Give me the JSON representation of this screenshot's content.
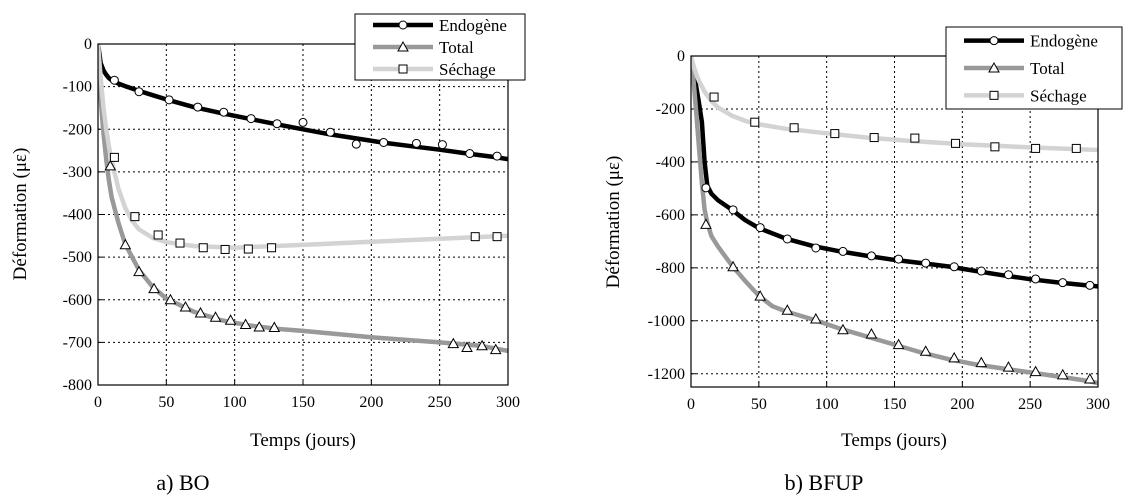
{
  "chart_data": [
    {
      "type": "line",
      "caption": "a) BO",
      "xlabel": "Temps (jours)",
      "ylabel": "Déformation (με)",
      "xlim": [
        0,
        300
      ],
      "ylim": [
        -800,
        0
      ],
      "xticks": [
        0,
        50,
        100,
        150,
        200,
        250,
        300
      ],
      "yticks": [
        0,
        -100,
        -200,
        -300,
        -400,
        -500,
        -600,
        -700,
        -800
      ],
      "grid": true,
      "legend_position": "top-right",
      "series": [
        {
          "name": "Endogène",
          "color": "#000000",
          "marker": "circle",
          "curve_x": [
            0,
            2,
            4,
            6,
            8,
            10,
            15,
            20,
            30,
            40,
            50,
            70,
            90,
            110,
            130,
            150,
            170,
            190,
            210,
            230,
            250,
            270,
            290,
            300
          ],
          "curve_y": [
            0,
            -45,
            -62,
            -72,
            -80,
            -85,
            -93,
            -99,
            -110,
            -120,
            -130,
            -148,
            -162,
            -175,
            -188,
            -200,
            -212,
            -222,
            -232,
            -240,
            -248,
            -257,
            -265,
            -270
          ],
          "marker_x": [
            12,
            30,
            52,
            73,
            92,
            112,
            131,
            150,
            170,
            189,
            209,
            233,
            252,
            272,
            292
          ],
          "marker_y": [
            -85,
            -112,
            -131,
            -148,
            -160,
            -175,
            -187,
            -184,
            -207,
            -235,
            -231,
            -233,
            -236,
            -257,
            -263
          ]
        },
        {
          "name": "Total",
          "color": "#999999",
          "marker": "triangle",
          "curve_x": [
            0,
            2,
            4,
            6,
            8,
            10,
            15,
            20,
            30,
            40,
            50,
            70,
            90,
            110,
            130,
            150,
            200,
            250,
            280,
            300
          ],
          "curve_y": [
            0,
            -130,
            -210,
            -270,
            -320,
            -360,
            -420,
            -470,
            -530,
            -570,
            -597,
            -628,
            -648,
            -660,
            -668,
            -673,
            -688,
            -700,
            -708,
            -720
          ],
          "marker_x": [
            9,
            20,
            30,
            41,
            53,
            64,
            75,
            86,
            97,
            108,
            118,
            129,
            260,
            270,
            281,
            291
          ],
          "marker_y": [
            -286,
            -471,
            -534,
            -574,
            -600,
            -617,
            -631,
            -641,
            -648,
            -658,
            -664,
            -665,
            -703,
            -712,
            -708,
            -717
          ]
        },
        {
          "name": "Séchage",
          "color": "#d3d3d3",
          "marker": "square",
          "curve_x": [
            0,
            2,
            4,
            6,
            8,
            10,
            15,
            20,
            25,
            30,
            40,
            50,
            70,
            100,
            130,
            160,
            200,
            250,
            300
          ],
          "curve_y": [
            0,
            -80,
            -150,
            -200,
            -240,
            -275,
            -340,
            -385,
            -415,
            -435,
            -455,
            -465,
            -474,
            -478,
            -474,
            -470,
            -464,
            -457,
            -450
          ],
          "marker_x": [
            12,
            27,
            44,
            60,
            77,
            93,
            110,
            127,
            276,
            292
          ],
          "marker_y": [
            -266,
            -405,
            -448,
            -467,
            -478,
            -482,
            -481,
            -478,
            -452,
            -452
          ]
        }
      ]
    },
    {
      "type": "line",
      "caption": "b) BFUP",
      "xlabel": "Temps (jours)",
      "ylabel": "Déformation (με)",
      "xlim": [
        0,
        300
      ],
      "ylim": [
        -1250,
        0
      ],
      "xticks": [
        0,
        50,
        100,
        150,
        200,
        250,
        300
      ],
      "yticks": [
        0,
        -200,
        -400,
        -600,
        -800,
        -1000,
        -1200
      ],
      "grid": true,
      "legend_position": "top-right",
      "series": [
        {
          "name": "Endogène",
          "color": "#000000",
          "marker": "circle",
          "curve_x": [
            0,
            2,
            4,
            6,
            8,
            10,
            12,
            15,
            20,
            30,
            40,
            50,
            70,
            90,
            110,
            130,
            150,
            170,
            190,
            210,
            230,
            250,
            270,
            290,
            300
          ],
          "curve_y": [
            0,
            -60,
            -120,
            -180,
            -250,
            -400,
            -490,
            -520,
            -545,
            -580,
            -620,
            -650,
            -690,
            -718,
            -738,
            -755,
            -770,
            -782,
            -795,
            -812,
            -828,
            -843,
            -855,
            -865,
            -870
          ],
          "marker_x": [
            11,
            31,
            51,
            71,
            92,
            112,
            133,
            153,
            173,
            194,
            214,
            234,
            254,
            274,
            294
          ],
          "marker_y": [
            -498,
            -581,
            -648,
            -691,
            -725,
            -738,
            -755,
            -767,
            -782,
            -796,
            -812,
            -826,
            -842,
            -856,
            -866
          ]
        },
        {
          "name": "Total",
          "color": "#999999",
          "marker": "triangle",
          "curve_x": [
            0,
            2,
            4,
            6,
            8,
            10,
            12,
            15,
            20,
            30,
            40,
            50,
            60,
            70,
            90,
            110,
            130,
            150,
            170,
            190,
            210,
            230,
            250,
            270,
            290,
            300
          ],
          "curve_y": [
            0,
            -100,
            -220,
            -350,
            -480,
            -580,
            -630,
            -680,
            -720,
            -790,
            -850,
            -905,
            -945,
            -965,
            -995,
            -1030,
            -1060,
            -1090,
            -1120,
            -1145,
            -1165,
            -1180,
            -1195,
            -1210,
            -1225,
            -1235
          ],
          "marker_x": [
            11,
            31,
            51,
            71,
            92,
            112,
            133,
            153,
            173,
            194,
            214,
            234,
            254,
            274,
            294
          ],
          "marker_y": [
            -636,
            -796,
            -907,
            -960,
            -993,
            -1034,
            -1050,
            -1090,
            -1115,
            -1140,
            -1158,
            -1175,
            -1192,
            -1204,
            -1220
          ]
        },
        {
          "name": "Séchage",
          "color": "#d3d3d3",
          "marker": "square",
          "curve_x": [
            0,
            2,
            4,
            6,
            8,
            10,
            15,
            20,
            30,
            40,
            50,
            70,
            100,
            130,
            160,
            200,
            250,
            300
          ],
          "curve_y": [
            0,
            -40,
            -70,
            -95,
            -115,
            -135,
            -170,
            -195,
            -225,
            -245,
            -258,
            -275,
            -292,
            -308,
            -320,
            -333,
            -345,
            -355
          ],
          "marker_x": [
            17,
            47,
            76,
            106,
            135,
            165,
            195,
            224,
            254,
            284
          ],
          "marker_y": [
            -155,
            -250,
            -271,
            -293,
            -308,
            -310,
            -330,
            -343,
            -349,
            -349
          ]
        }
      ]
    }
  ]
}
